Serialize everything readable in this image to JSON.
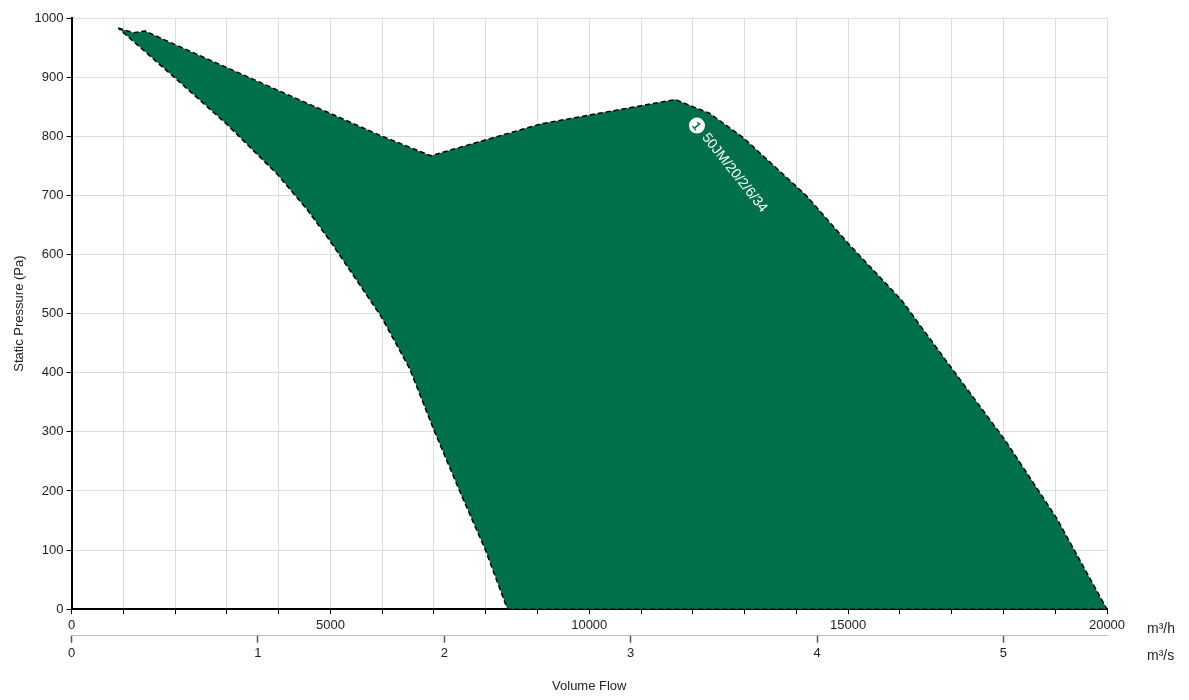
{
  "chart_data": {
    "type": "area",
    "xlabel": "Volume Flow",
    "ylabel": "Static Pressure (Pa)",
    "series": [
      {
        "color": "#00704a",
        "x": [
          900,
          1200,
          1420,
          1950,
          3980,
          5970,
          6940,
          9070,
          11020,
          11660,
          12320,
          12970,
          14200,
          15020,
          16030,
          17030,
          18040,
          19020,
          20000,
          8420,
          7990,
          7510,
          6990,
          6530,
          5980,
          5000,
          4550,
          3970,
          2990,
          1980,
          900
        ],
        "values": [
          983,
          975,
          978,
          957,
          878,
          801,
          767,
          821,
          852,
          862,
          839,
          798,
          699,
          617,
          523,
          404,
          285,
          155,
          0,
          0,
          101,
          197,
          305,
          407,
          495,
          622,
          676,
          736,
          821,
          900,
          983
        ]
      }
    ],
    "xlim": [
      0,
      20000
    ],
    "xticks": [
      0,
      {
        "value": 1000,
        "label": null
      },
      {
        "value": 2000,
        "label": null
      },
      {
        "value": 3000,
        "label": null
      },
      {
        "value": 4000,
        "label": null
      },
      5000,
      {
        "value": 6000,
        "label": null
      },
      {
        "value": 7000,
        "label": null
      },
      {
        "value": 8000,
        "label": null
      },
      {
        "value": 9000,
        "label": null
      },
      10000,
      {
        "value": 11000,
        "label": null
      },
      {
        "value": 12000,
        "label": null
      },
      {
        "value": 13000,
        "label": null
      },
      {
        "value": 14000,
        "label": null
      },
      15000,
      {
        "value": 16000,
        "label": null
      },
      {
        "value": 17000,
        "label": null
      },
      {
        "value": 18000,
        "label": null
      },
      {
        "value": 19000,
        "label": null
      },
      20000
    ],
    "x2lim": [
      0,
      5.556
    ],
    "x2ticks": [
      0,
      1,
      2,
      3,
      4,
      5
    ],
    "ylim": [
      0,
      1000
    ],
    "yticks": [
      0,
      100,
      200,
      300,
      400,
      500,
      600,
      700,
      800,
      900,
      1000
    ],
    "annotations": [
      {
        "text": "1",
        "x": 12080,
        "y": 818
      },
      "50JM/20/2/6/34",
      "m³/h",
      "m³/s"
    ],
    "grid": true,
    "legend": false,
    "marker": "none",
    "line_style": "dashed"
  }
}
